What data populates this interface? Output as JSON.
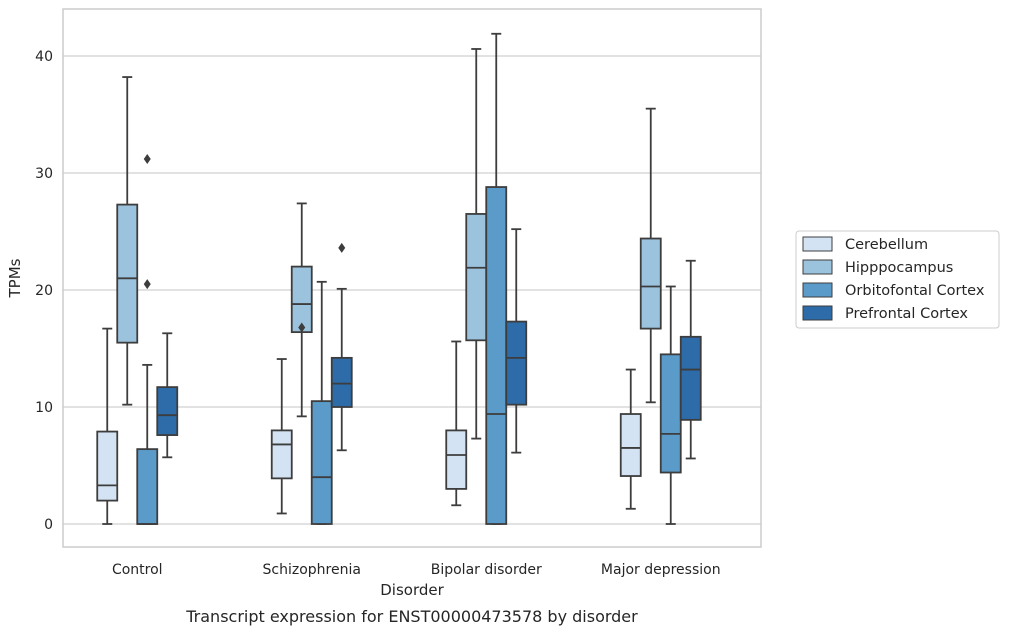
{
  "caption": "Transcript expression for ENST00000473578 by disorder",
  "chart_data": {
    "type": "box",
    "title": "",
    "xlabel": "Disorder",
    "ylabel": "TPMs",
    "ylim": [
      -2,
      44
    ],
    "yticks": [
      0,
      10,
      20,
      30,
      40
    ],
    "grid": "horizontal",
    "legend_position": "right",
    "categories": [
      "Control",
      "Schizophrenia",
      "Bipolar disorder",
      "Major depression"
    ],
    "series": [
      {
        "name": "Cerebellum",
        "color": "#d4e3f3",
        "boxes": [
          {
            "whisker_low": 0.0,
            "q1": 2.0,
            "median": 3.3,
            "q3": 7.9,
            "whisker_high": 16.7,
            "outliers": []
          },
          {
            "whisker_low": 0.9,
            "q1": 3.9,
            "median": 6.8,
            "q3": 8.0,
            "whisker_high": 14.1,
            "outliers": []
          },
          {
            "whisker_low": 1.6,
            "q1": 3.0,
            "median": 5.9,
            "q3": 8.0,
            "whisker_high": 15.6,
            "outliers": []
          },
          {
            "whisker_low": 1.3,
            "q1": 4.1,
            "median": 6.5,
            "q3": 9.4,
            "whisker_high": 13.2,
            "outliers": []
          }
        ]
      },
      {
        "name": "Hipppocampus",
        "color": "#9cc3de",
        "boxes": [
          {
            "whisker_low": 10.2,
            "q1": 15.5,
            "median": 21.0,
            "q3": 27.3,
            "whisker_high": 38.2,
            "outliers": []
          },
          {
            "whisker_low": 9.2,
            "q1": 16.4,
            "median": 18.8,
            "q3": 22.0,
            "whisker_high": 27.4,
            "outliers": [
              16.8
            ]
          },
          {
            "whisker_low": 7.3,
            "q1": 15.7,
            "median": 21.9,
            "q3": 26.5,
            "whisker_high": 40.6,
            "outliers": []
          },
          {
            "whisker_low": 10.4,
            "q1": 16.7,
            "median": 20.3,
            "q3": 24.4,
            "whisker_high": 35.5,
            "outliers": []
          }
        ]
      },
      {
        "name": "Orbitofontal Cortex",
        "color": "#5a9bc9",
        "boxes": [
          {
            "whisker_low": 0.0,
            "q1": 0.0,
            "median": 0.0,
            "q3": 6.4,
            "whisker_high": 13.6,
            "outliers": [
              20.5,
              31.2
            ]
          },
          {
            "whisker_low": 0.0,
            "q1": 0.0,
            "median": 4.0,
            "q3": 10.5,
            "whisker_high": 20.7,
            "outliers": []
          },
          {
            "whisker_low": 0.0,
            "q1": 0.0,
            "median": 9.4,
            "q3": 28.8,
            "whisker_high": 41.9,
            "outliers": []
          },
          {
            "whisker_low": 0.0,
            "q1": 4.4,
            "median": 7.7,
            "q3": 14.5,
            "whisker_high": 20.3,
            "outliers": []
          }
        ]
      },
      {
        "name": "Prefrontal Cortex",
        "color": "#2d6ba9",
        "boxes": [
          {
            "whisker_low": 5.7,
            "q1": 7.6,
            "median": 9.3,
            "q3": 11.7,
            "whisker_high": 16.3,
            "outliers": []
          },
          {
            "whisker_low": 6.3,
            "q1": 10.0,
            "median": 12.0,
            "q3": 14.2,
            "whisker_high": 20.1,
            "outliers": [
              23.6
            ]
          },
          {
            "whisker_low": 6.1,
            "q1": 10.2,
            "median": 14.2,
            "q3": 17.3,
            "whisker_high": 25.2,
            "outliers": []
          },
          {
            "whisker_low": 5.6,
            "q1": 8.9,
            "median": 13.2,
            "q3": 16.0,
            "whisker_high": 22.5,
            "outliers": []
          }
        ]
      }
    ]
  }
}
